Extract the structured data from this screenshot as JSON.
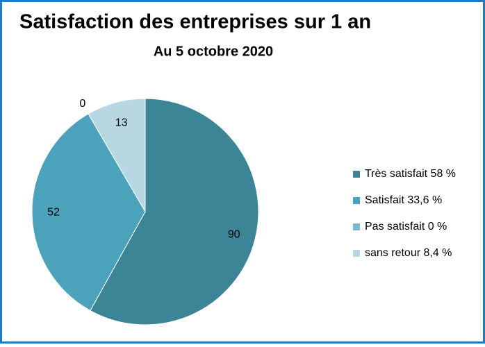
{
  "chart_data": {
    "type": "pie",
    "title": "Satisfaction des entreprises sur 1 an",
    "subtitle": "Au 5 octobre 2020",
    "categories": [
      "Très satisfait 58 %",
      "Satisfait 33,6 %",
      "Pas satisfait 0 %",
      "sans retour 8,4 %"
    ],
    "values": [
      90,
      52,
      0,
      13
    ],
    "colors": [
      "#3b8597",
      "#4aa3bb",
      "#78b9cc",
      "#b7d8e3"
    ],
    "legend": "right"
  }
}
